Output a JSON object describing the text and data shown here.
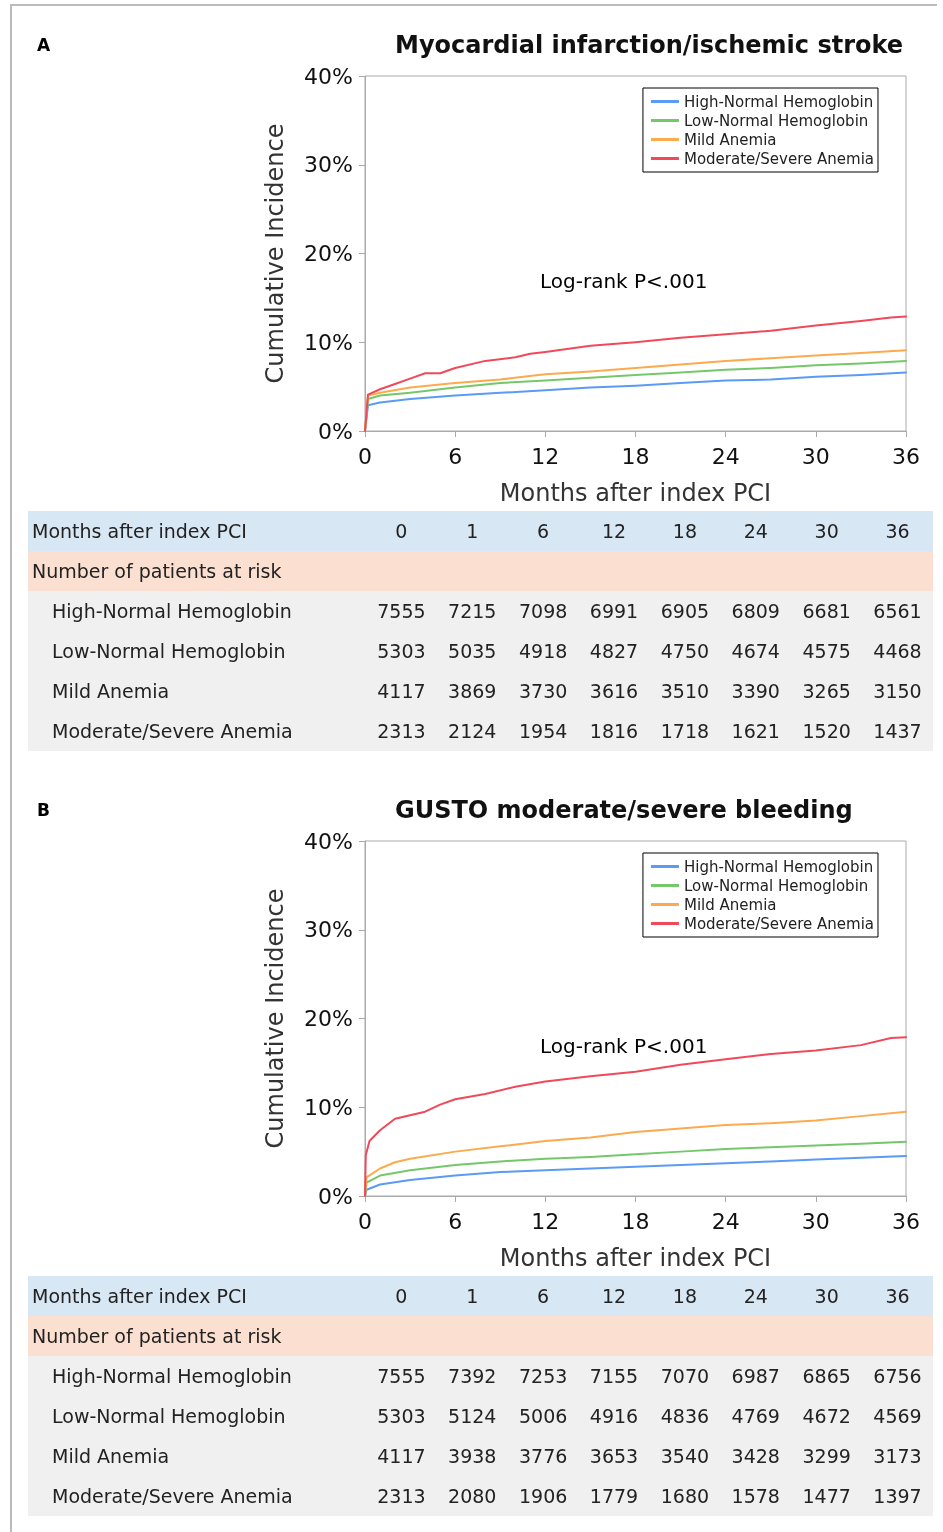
{
  "chart_data": [
    {
      "type": "line",
      "title": "Myocardial infarction/ischemic stroke",
      "xlabel": "Months after index PCI",
      "ylabel": "Cumulative Incidence",
      "annotations": [
        "A",
        "Log-rank P<.001"
      ],
      "xlim": [
        0,
        36
      ],
      "xticks": [
        0,
        6,
        12,
        18,
        24,
        30,
        36
      ],
      "ylim": [
        0,
        40
      ],
      "yticks": [
        {
          "value": 0,
          "label": "0%"
        },
        {
          "value": 10,
          "label": "10%"
        },
        {
          "value": 20,
          "label": "20%"
        },
        {
          "value": 30,
          "label": "30%"
        },
        {
          "value": 40,
          "label": "40%"
        }
      ],
      "grid": false,
      "legend": "top right",
      "marker": "none",
      "line_style": "solid",
      "x": [
        0,
        0.2,
        1,
        3,
        6,
        9,
        12,
        15,
        18,
        21,
        24,
        27,
        30,
        33,
        36
      ],
      "series": [
        {
          "name": "High-Normal Hemoglobin",
          "color": "#5a9bf5",
          "values": [
            0,
            2.9,
            3.2,
            3.6,
            4.0,
            4.3,
            4.6,
            4.9,
            5.1,
            5.4,
            5.7,
            5.8,
            6.1,
            6.3,
            6.6
          ]
        },
        {
          "name": "Low-Normal Hemoglobin",
          "color": "#74c86a",
          "values": [
            0,
            3.6,
            4.0,
            4.3,
            4.9,
            5.4,
            5.7,
            6.0,
            6.3,
            6.6,
            6.9,
            7.1,
            7.4,
            7.6,
            7.9
          ]
        },
        {
          "name": "Mild Anemia",
          "color": "#fbab4e",
          "values": [
            0,
            4.0,
            4.3,
            4.9,
            5.4,
            5.8,
            6.4,
            6.7,
            7.1,
            7.5,
            7.9,
            8.2,
            8.5,
            8.8,
            9.1
          ]
        },
        {
          "name": "Moderate/Severe Anemia",
          "color": "#f04a5a",
          "x": [
            0,
            0.2,
            1,
            2,
            3,
            4,
            5,
            6,
            8,
            10,
            11,
            12,
            15,
            18,
            21,
            24,
            27,
            30,
            33,
            35,
            36
          ],
          "values": [
            0,
            4.1,
            4.7,
            5.3,
            5.9,
            6.5,
            6.5,
            7.1,
            7.9,
            8.3,
            8.7,
            8.9,
            9.6,
            10.0,
            10.5,
            10.9,
            11.3,
            11.9,
            12.4,
            12.8,
            12.9
          ]
        }
      ]
    },
    {
      "type": "other",
      "xlabel": "Months after index PCI",
      "title": "Number of patients at risk",
      "categories": [
        "0",
        "1",
        "6",
        "12",
        "18",
        "24",
        "30",
        "36"
      ],
      "y_categories": [
        "High-Normal Hemoglobin",
        "Low-Normal Hemoglobin",
        "Mild Anemia",
        "Moderate/Severe Anemia"
      ],
      "cells": [
        [
          "7555",
          "7215",
          "7098",
          "6991",
          "6905",
          "6809",
          "6681",
          "6561"
        ],
        [
          "5303",
          "5035",
          "4918",
          "4827",
          "4750",
          "4674",
          "4575",
          "4468"
        ],
        [
          "4117",
          "3869",
          "3730",
          "3616",
          "3510",
          "3390",
          "3265",
          "3150"
        ],
        [
          "2313",
          "2124",
          "1954",
          "1816",
          "1718",
          "1621",
          "1520",
          "1437"
        ]
      ]
    },
    {
      "type": "line",
      "title": "GUSTO moderate/severe bleeding",
      "xlabel": "Months after index PCI",
      "ylabel": "Cumulative Incidence",
      "annotations": [
        "B",
        "Log-rank P<.001"
      ],
      "xlim": [
        0,
        36
      ],
      "xticks": [
        0,
        6,
        12,
        18,
        24,
        30,
        36
      ],
      "ylim": [
        0,
        40
      ],
      "yticks": [
        {
          "value": 0,
          "label": "0%"
        },
        {
          "value": 10,
          "label": "10%"
        },
        {
          "value": 20,
          "label": "20%"
        },
        {
          "value": 30,
          "label": "30%"
        },
        {
          "value": 40,
          "label": "40%"
        }
      ],
      "grid": false,
      "legend": "top right",
      "marker": "none",
      "line_style": "solid",
      "x": [
        0,
        0.1,
        1,
        3,
        6,
        9,
        12,
        15,
        18,
        21,
        24,
        27,
        30,
        33,
        36
      ],
      "series": [
        {
          "name": "High-Normal Hemoglobin",
          "color": "#5a9bf5",
          "values": [
            0,
            0.7,
            1.3,
            1.8,
            2.3,
            2.7,
            2.9,
            3.1,
            3.3,
            3.5,
            3.7,
            3.9,
            4.1,
            4.3,
            4.5
          ]
        },
        {
          "name": "Low-Normal Hemoglobin",
          "color": "#74c86a",
          "values": [
            0,
            1.5,
            2.3,
            2.9,
            3.5,
            3.9,
            4.2,
            4.4,
            4.7,
            5.0,
            5.3,
            5.5,
            5.7,
            5.9,
            6.1
          ]
        },
        {
          "name": "Mild Anemia",
          "color": "#fbab4e",
          "x": [
            0,
            0.1,
            1,
            2,
            3,
            6,
            9,
            12,
            15,
            18,
            21,
            24,
            27,
            30,
            33,
            36
          ],
          "values": [
            0,
            2.1,
            3.1,
            3.8,
            4.2,
            5.0,
            5.6,
            6.2,
            6.6,
            7.2,
            7.6,
            8.0,
            8.2,
            8.5,
            9.0,
            9.5
          ]
        },
        {
          "name": "Moderate/Severe Anemia",
          "color": "#f04a5a",
          "x": [
            0,
            0.05,
            0.3,
            1,
            2,
            3,
            4,
            5,
            6,
            8,
            10,
            12,
            15,
            18,
            21,
            24,
            27,
            30,
            33,
            35,
            36
          ],
          "values": [
            0,
            4.6,
            6.2,
            7.4,
            8.7,
            9.1,
            9.5,
            10.3,
            10.9,
            11.5,
            12.3,
            12.9,
            13.5,
            14.0,
            14.8,
            15.4,
            16.0,
            16.4,
            17.0,
            17.8,
            17.9
          ]
        }
      ]
    },
    {
      "type": "other",
      "xlabel": "Months after index PCI",
      "title": "Number of patients at risk",
      "categories": [
        "0",
        "1",
        "6",
        "12",
        "18",
        "24",
        "30",
        "36"
      ],
      "y_categories": [
        "High-Normal Hemoglobin",
        "Low-Normal Hemoglobin",
        "Mild Anemia",
        "Moderate/Severe Anemia"
      ],
      "cells": [
        [
          "7555",
          "7392",
          "7253",
          "7155",
          "7070",
          "6987",
          "6865",
          "6756"
        ],
        [
          "5303",
          "5124",
          "5006",
          "4916",
          "4836",
          "4769",
          "4672",
          "4569"
        ],
        [
          "4117",
          "3938",
          "3776",
          "3653",
          "3540",
          "3428",
          "3299",
          "3173"
        ],
        [
          "2313",
          "2080",
          "1906",
          "1779",
          "1680",
          "1578",
          "1477",
          "1397"
        ]
      ]
    }
  ]
}
